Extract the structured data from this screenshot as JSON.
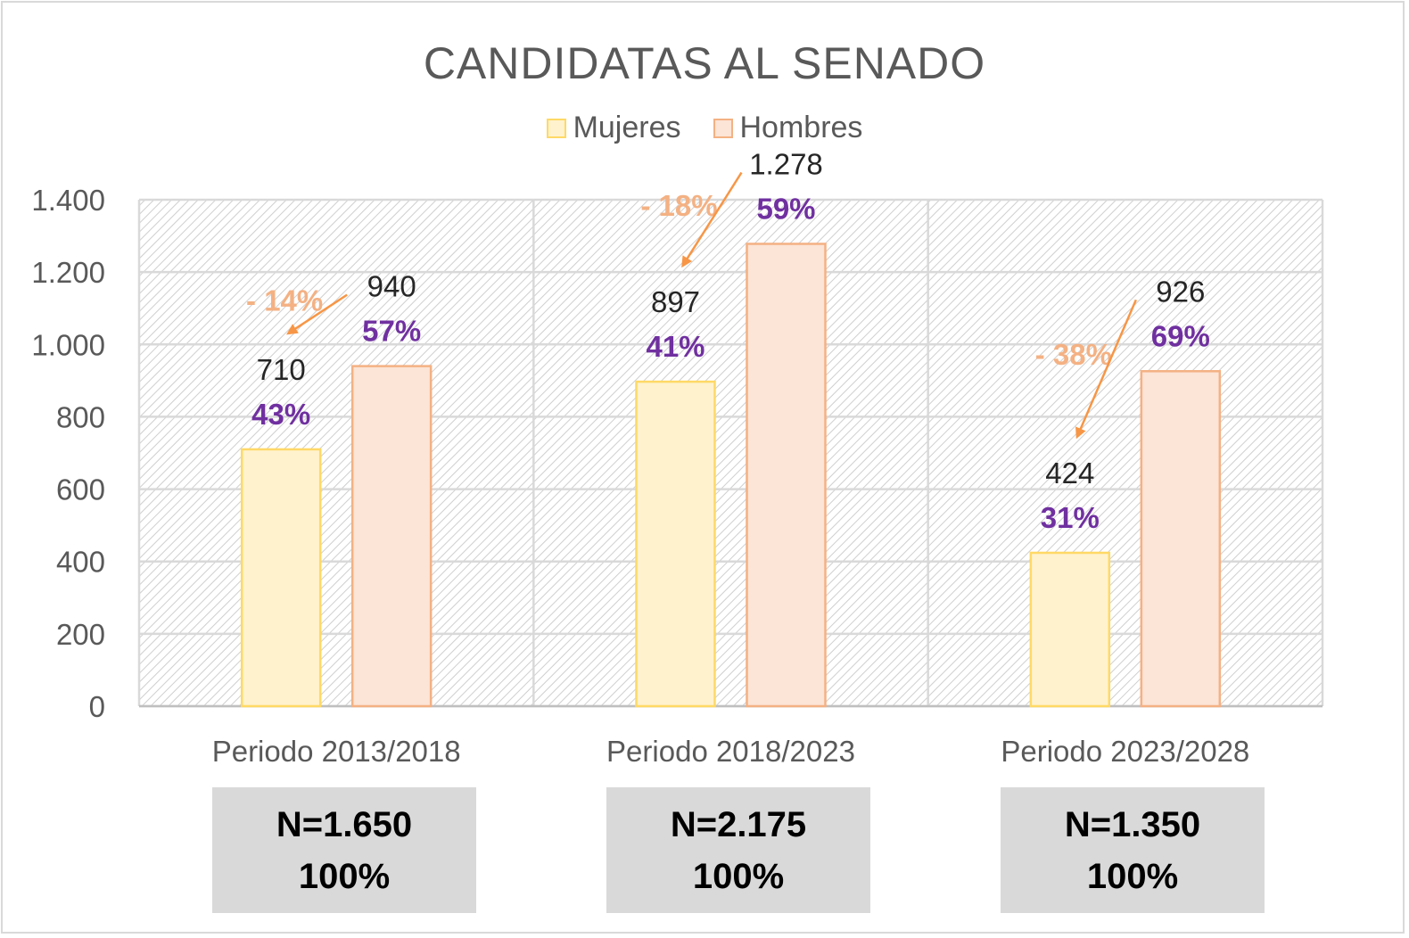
{
  "chart_data": {
    "type": "bar",
    "title": "CANDIDATAS AL SENADO",
    "categories": [
      "Periodo 2013/2018",
      "Periodo 2018/2023",
      "Periodo 2023/2028"
    ],
    "series": [
      {
        "name": "Mujeres",
        "values": [
          710,
          897,
          424
        ],
        "percent_labels": [
          "43%",
          "41%",
          "31%"
        ],
        "color": "#fff2cc",
        "border": "#ffd966"
      },
      {
        "name": "Hombres",
        "values": [
          940,
          1278,
          926
        ],
        "percent_labels": [
          "57%",
          "59%",
          "69%"
        ],
        "color": "#fce4d6",
        "border": "#f4b183"
      }
    ],
    "value_labels": {
      "Mujeres": [
        "710",
        "897",
        "424"
      ],
      "Hombres": [
        "940",
        "1.278",
        "926"
      ]
    },
    "gap_annotations": [
      "- 14%",
      "- 18%",
      "- 38%"
    ],
    "yticks": [
      0,
      200,
      400,
      600,
      800,
      1000,
      1200,
      1400
    ],
    "ytick_labels": [
      "0",
      "200",
      "400",
      "600",
      "800",
      "1.000",
      "1.200",
      "1.400"
    ],
    "ylim": [
      0,
      1400
    ],
    "grid": true,
    "legend": "top-center",
    "totals": [
      {
        "n": "N=1.650",
        "pct": "100%"
      },
      {
        "n": "N=2.175",
        "pct": "100%"
      },
      {
        "n": "N=1.350",
        "pct": "100%"
      }
    ],
    "colors": {
      "title": "#595959",
      "percent": "#7030a0",
      "gap": "#f4b183",
      "arrow": "#f79646",
      "grid": "#d9d9d9",
      "total_box": "#d9d9d9"
    }
  }
}
